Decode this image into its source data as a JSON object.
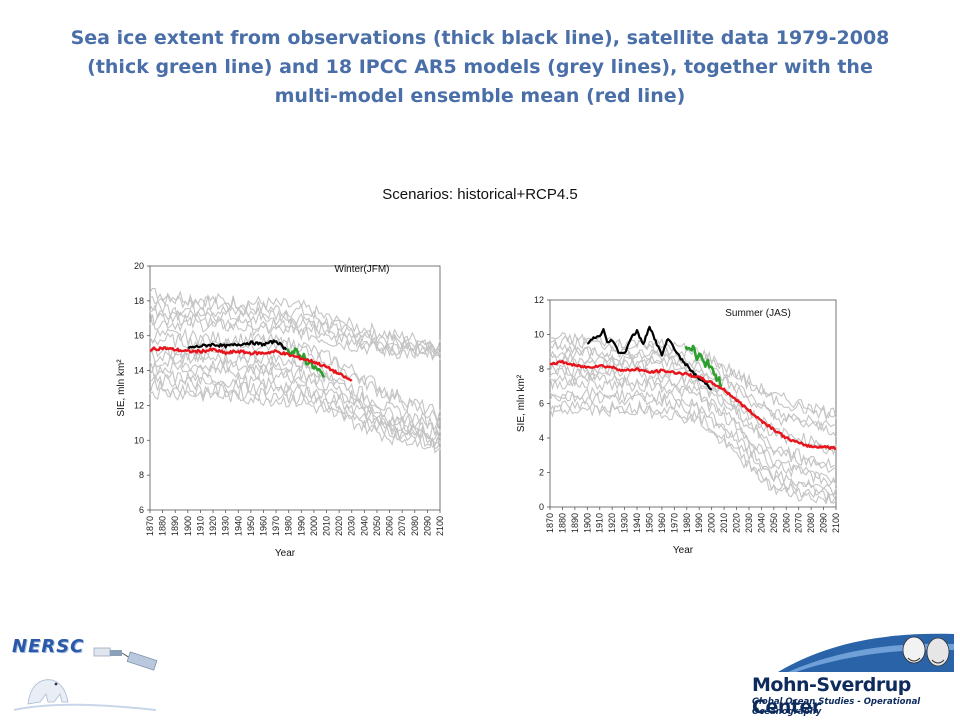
{
  "title_lines": [
    "Sea ice extent  from observations (thick black line), satellite data 1979-2008",
    "(thick green line)  and 18  IPCC AR5 models (grey lines), together with the",
    "multi-model ensemble mean (red line)"
  ],
  "scenario": "Scenarios: historical+RCP4.5",
  "colors": {
    "title": "#4a6fa8",
    "models": "#c4c4c4",
    "observations": "#000000",
    "satellite": "#2ca02c",
    "ensemble_mean": "#e8141c"
  },
  "chart_data": [
    {
      "type": "line",
      "panel_label": "Winter(JFM)",
      "xlabel": "Year",
      "ylabel": "SIE, mln km²",
      "xlim": [
        1870,
        2100
      ],
      "ylim": [
        6,
        20
      ],
      "yticks": [
        6,
        8,
        10,
        12,
        14,
        16,
        18,
        20
      ],
      "xticks": [
        1870,
        1880,
        1890,
        1900,
        1910,
        1920,
        1930,
        1940,
        1950,
        1960,
        1970,
        1980,
        1990,
        2000,
        2010,
        2020,
        2030,
        2040,
        2050,
        2060,
        2070,
        2080,
        2090,
        2100
      ],
      "model_envelopes": [
        [
          [
            1870,
            18.2
          ],
          [
            1920,
            17.8
          ],
          [
            1960,
            17.6
          ],
          [
            1990,
            17.4
          ],
          [
            2020,
            16.5
          ],
          [
            2060,
            15.8
          ],
          [
            2100,
            15.3
          ]
        ],
        [
          [
            1870,
            17.4
          ],
          [
            1920,
            17.2
          ],
          [
            1960,
            17.0
          ],
          [
            1990,
            16.8
          ],
          [
            2020,
            16.0
          ],
          [
            2060,
            15.3
          ],
          [
            2100,
            15.0
          ]
        ],
        [
          [
            1870,
            16.8
          ],
          [
            1920,
            16.6
          ],
          [
            1960,
            16.4
          ],
          [
            1990,
            16.2
          ],
          [
            2020,
            15.6
          ],
          [
            2060,
            15.1
          ],
          [
            2100,
            14.8
          ]
        ],
        [
          [
            1870,
            15.8
          ],
          [
            1920,
            15.6
          ],
          [
            1960,
            15.5
          ],
          [
            1990,
            15.2
          ],
          [
            2020,
            14.2
          ],
          [
            2060,
            12.5
          ],
          [
            2100,
            11.2
          ]
        ],
        [
          [
            1870,
            14.8
          ],
          [
            1920,
            14.7
          ],
          [
            1960,
            14.5
          ],
          [
            1990,
            14.2
          ],
          [
            2020,
            13.2
          ],
          [
            2060,
            11.5
          ],
          [
            2100,
            10.6
          ]
        ],
        [
          [
            1870,
            14.2
          ],
          [
            1920,
            14.0
          ],
          [
            1960,
            13.9
          ],
          [
            1990,
            13.6
          ],
          [
            2020,
            12.6
          ],
          [
            2060,
            11.0
          ],
          [
            2100,
            10.0
          ]
        ],
        [
          [
            1870,
            13.4
          ],
          [
            1920,
            13.2
          ],
          [
            1960,
            13.0
          ],
          [
            1990,
            12.8
          ],
          [
            2020,
            12.0
          ],
          [
            2060,
            10.6
          ],
          [
            2100,
            9.6
          ]
        ],
        [
          [
            1870,
            12.8
          ],
          [
            1920,
            12.6
          ],
          [
            1960,
            12.4
          ],
          [
            1990,
            12.2
          ],
          [
            2020,
            11.4
          ],
          [
            2060,
            10.2
          ],
          [
            2100,
            9.8
          ]
        ]
      ],
      "observations": {
        "x": [
          1900,
          1910,
          1920,
          1930,
          1940,
          1950,
          1960,
          1970,
          1975,
          1978
        ],
        "y": [
          15.3,
          15.4,
          15.5,
          15.4,
          15.5,
          15.6,
          15.5,
          15.7,
          15.4,
          15.2
        ]
      },
      "satellite": {
        "x": [
          1979,
          1982,
          1985,
          1988,
          1991,
          1994,
          1997,
          2000,
          2003,
          2006,
          2008
        ],
        "y": [
          15.4,
          15.0,
          15.1,
          14.8,
          14.9,
          14.6,
          14.4,
          14.2,
          14.0,
          13.8,
          13.6
        ]
      },
      "ensemble_mean": {
        "x": [
          1870,
          1880,
          1890,
          1900,
          1910,
          1920,
          1930,
          1940,
          1950,
          1960,
          1970,
          1980,
          1990,
          2000,
          2010,
          2020,
          2030
        ],
        "y": [
          15.2,
          15.3,
          15.2,
          15.1,
          15.1,
          15.2,
          15.0,
          15.1,
          15.0,
          15.0,
          15.1,
          14.9,
          14.7,
          14.5,
          14.2,
          13.8,
          13.4
        ]
      }
    },
    {
      "type": "line",
      "panel_label": "Summer (JAS)",
      "xlabel": "Year",
      "ylabel": "SIE, mln km²",
      "xlim": [
        1870,
        2100
      ],
      "ylim": [
        0,
        12
      ],
      "yticks": [
        0,
        2,
        4,
        6,
        8,
        10,
        12
      ],
      "xticks": [
        1870,
        1880,
        1890,
        1900,
        1910,
        1920,
        1930,
        1940,
        1950,
        1960,
        1970,
        1980,
        1990,
        2000,
        2010,
        2020,
        2030,
        2040,
        2050,
        2060,
        2070,
        2080,
        2090,
        2100
      ],
      "model_envelopes": [
        [
          [
            1870,
            9.6
          ],
          [
            1920,
            9.4
          ],
          [
            1960,
            9.2
          ],
          [
            1990,
            8.8
          ],
          [
            2020,
            7.5
          ],
          [
            2050,
            6.2
          ],
          [
            2100,
            5.2
          ]
        ],
        [
          [
            1870,
            9.0
          ],
          [
            1920,
            8.8
          ],
          [
            1960,
            8.7
          ],
          [
            1990,
            8.2
          ],
          [
            2020,
            6.8
          ],
          [
            2050,
            5.2
          ],
          [
            2100,
            4.4
          ]
        ],
        [
          [
            1870,
            8.4
          ],
          [
            1920,
            8.3
          ],
          [
            1960,
            8.2
          ],
          [
            1990,
            7.6
          ],
          [
            2020,
            6.0
          ],
          [
            2050,
            4.2
          ],
          [
            2100,
            3.2
          ]
        ],
        [
          [
            1870,
            7.8
          ],
          [
            1920,
            7.7
          ],
          [
            1960,
            7.6
          ],
          [
            1990,
            7.0
          ],
          [
            2020,
            5.4
          ],
          [
            2050,
            3.2
          ],
          [
            2100,
            2.2
          ]
        ],
        [
          [
            1870,
            7.2
          ],
          [
            1920,
            7.1
          ],
          [
            1960,
            7.0
          ],
          [
            1990,
            6.4
          ],
          [
            2020,
            4.6
          ],
          [
            2050,
            2.4
          ],
          [
            2100,
            1.4
          ]
        ],
        [
          [
            1870,
            6.4
          ],
          [
            1920,
            6.3
          ],
          [
            1960,
            6.2
          ],
          [
            1990,
            5.6
          ],
          [
            2020,
            3.8
          ],
          [
            2050,
            1.6
          ],
          [
            2100,
            0.6
          ]
        ],
        [
          [
            1870,
            5.6
          ],
          [
            1920,
            5.6
          ],
          [
            1960,
            5.5
          ],
          [
            1990,
            5.0
          ],
          [
            2020,
            3.0
          ],
          [
            2050,
            1.0
          ],
          [
            2100,
            0.3
          ]
        ]
      ],
      "observations": {
        "x": [
          1900,
          1905,
          1910,
          1913,
          1916,
          1920,
          1925,
          1930,
          1935,
          1940,
          1945,
          1950,
          1955,
          1960,
          1965,
          1970,
          1975,
          1980,
          1985,
          1990,
          1995,
          2000
        ],
        "y": [
          9.4,
          9.8,
          9.9,
          10.3,
          9.5,
          9.7,
          9.0,
          8.9,
          9.8,
          10.2,
          9.4,
          10.5,
          9.6,
          8.8,
          9.8,
          9.2,
          8.6,
          8.2,
          7.8,
          7.4,
          7.2,
          6.8
        ]
      },
      "satellite": {
        "x": [
          1979,
          1982,
          1985,
          1988,
          1991,
          1994,
          1997,
          2000,
          2003,
          2006,
          2008
        ],
        "y": [
          9.5,
          9.0,
          9.3,
          8.6,
          8.8,
          8.2,
          8.5,
          7.9,
          7.6,
          7.3,
          7.1
        ]
      },
      "ensemble_mean": {
        "x": [
          1870,
          1880,
          1890,
          1900,
          1910,
          1920,
          1930,
          1940,
          1950,
          1960,
          1970,
          1980,
          1990,
          2000,
          2010,
          2020,
          2030,
          2040,
          2050,
          2060,
          2070,
          2080,
          2090,
          2100
        ],
        "y": [
          8.3,
          8.4,
          8.2,
          8.1,
          8.2,
          8.1,
          7.9,
          8.0,
          7.8,
          7.9,
          7.8,
          7.7,
          7.5,
          7.2,
          6.8,
          6.2,
          5.6,
          5.0,
          4.5,
          4.0,
          3.7,
          3.5,
          3.5,
          3.4
        ]
      }
    }
  ],
  "logos": {
    "left": "NERSC",
    "right_name": "Mohn-Sverdrup Center",
    "right_tagline": "Global Ocean Studies - Operational Oceanography"
  }
}
